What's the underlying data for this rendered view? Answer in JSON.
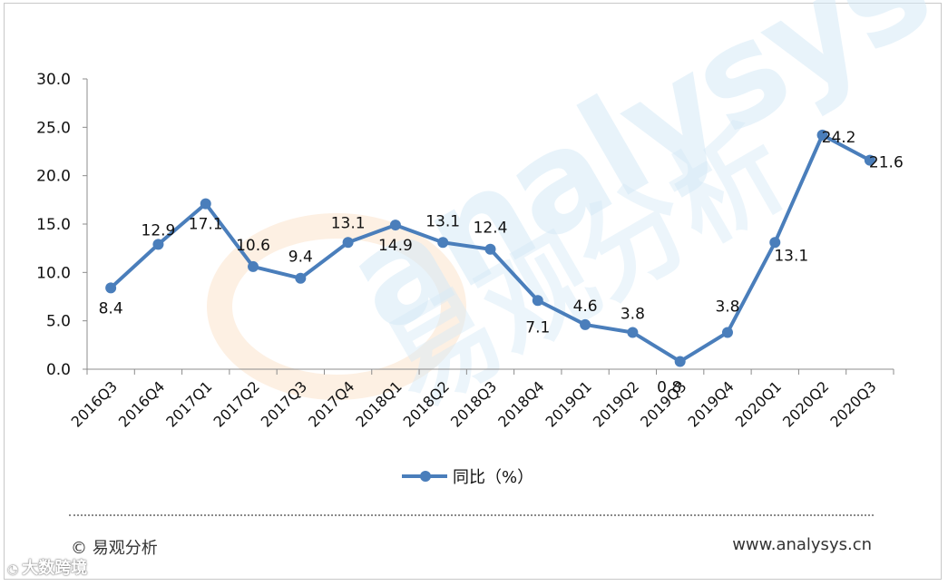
{
  "chart_data": {
    "type": "line",
    "categories": [
      "2016Q3",
      "2016Q4",
      "2017Q1",
      "2017Q2",
      "2017Q3",
      "2017Q4",
      "2018Q1",
      "2018Q2",
      "2018Q3",
      "2018Q4",
      "2019Q1",
      "2019Q2",
      "2019Q3",
      "2019Q4",
      "2020Q1",
      "2020Q2",
      "2020Q3"
    ],
    "series": [
      {
        "name": "同比（%）",
        "values": [
          8.4,
          12.9,
          17.1,
          10.6,
          9.4,
          13.1,
          14.9,
          13.1,
          12.4,
          7.1,
          4.6,
          3.8,
          0.8,
          3.8,
          13.1,
          24.2,
          21.6
        ],
        "color": "#4a7ebb"
      }
    ],
    "point_labels": [
      "8.4",
      "12.9",
      "17.1",
      "10.6",
      "9.4",
      "13.1",
      "14.9",
      "13.1",
      "12.4",
      "7.1",
      "4.6",
      "3.8",
      "0.8",
      "3.8",
      "13.1",
      "24.2",
      "21.6"
    ],
    "ylim": [
      0,
      30
    ],
    "yticks": [
      "0.0",
      "5.0",
      "10.0",
      "15.0",
      "20.0",
      "25.0",
      "30.0"
    ],
    "legend_position": "bottom",
    "grid": false
  },
  "footer": {
    "copyright": "© 易观分析",
    "website": "www.analysys.cn"
  },
  "watermarks": {
    "brand": "analysys",
    "brand_cn": "易观分析",
    "corner": "大数跨境"
  }
}
